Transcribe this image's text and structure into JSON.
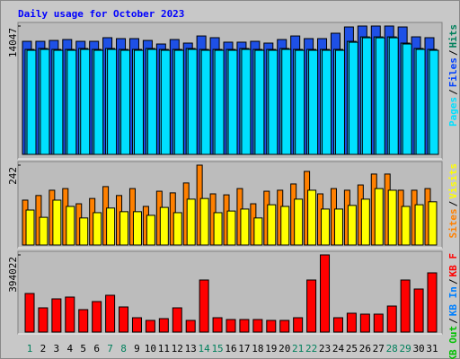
{
  "chart_data": [
    {
      "type": "bar",
      "title": "Daily usage for October 2023",
      "legend_separator": "/",
      "ylim": [
        0,
        14047
      ],
      "yticks": [
        14047
      ],
      "series": [
        {
          "name": "Hits",
          "color": "#1e50e6",
          "label_color": "#00805c",
          "values": [
            12375,
            12375,
            12470,
            12570,
            12375,
            12375,
            12770,
            12670,
            12670,
            12470,
            12080,
            12570,
            12180,
            12960,
            12770,
            12280,
            12280,
            12375,
            12180,
            12570,
            12960,
            12670,
            12670,
            13260,
            13945,
            14047,
            14047,
            14047,
            13945,
            12865,
            12770
          ]
        },
        {
          "name": "Files",
          "color": "#20b8f0",
          "label_color": "#0040ff",
          "values": [
            11490,
            11590,
            11490,
            11490,
            11590,
            11490,
            11590,
            11490,
            11490,
            11590,
            11490,
            11490,
            11590,
            11490,
            11490,
            11490,
            11590,
            11490,
            11490,
            11590,
            11490,
            11490,
            11490,
            11490,
            12370,
            12860,
            12860,
            12860,
            12180,
            11590,
            11490
          ]
        },
        {
          "name": "Pages",
          "color": "#00e0ff",
          "label_color": "#00e0ff",
          "values": [
            11390,
            11490,
            11390,
            11390,
            11490,
            11390,
            11490,
            11390,
            11390,
            11490,
            11390,
            11390,
            11490,
            11390,
            11390,
            11390,
            11490,
            11390,
            11390,
            11490,
            11390,
            11390,
            11390,
            11390,
            12270,
            12760,
            12760,
            12760,
            12080,
            11490,
            11390
          ]
        }
      ]
    },
    {
      "type": "bar",
      "legend_separator": "/",
      "ylim": [
        0,
        242
      ],
      "yticks": [
        242
      ],
      "series": [
        {
          "name": "Visits",
          "color": "#ffff00",
          "label_color": "#ffff00",
          "values": [
            106,
            84,
            136,
            117,
            82,
            98,
            112,
            101,
            101,
            90,
            114,
            98,
            139,
            141,
            98,
            103,
            109,
            82,
            122,
            117,
            139,
            166,
            109,
            109,
            120,
            139,
            171,
            166,
            117,
            122,
            131
          ]
        },
        {
          "name": "Sites",
          "color": "#ff8000",
          "label_color": "#ff8000",
          "values": [
            136,
            150,
            166,
            171,
            125,
            141,
            177,
            150,
            171,
            117,
            163,
            158,
            188,
            242,
            155,
            152,
            171,
            125,
            163,
            166,
            185,
            223,
            155,
            171,
            166,
            182,
            215,
            215,
            166,
            166,
            171
          ]
        }
      ]
    },
    {
      "type": "bar",
      "legend_separator": "/",
      "ylim": [
        0,
        394022
      ],
      "yticks": [
        394022
      ],
      "categories": [
        "1",
        "2",
        "3",
        "4",
        "5",
        "6",
        "7",
        "8",
        "9",
        "10",
        "11",
        "12",
        "13",
        "14",
        "15",
        "16",
        "17",
        "18",
        "19",
        "20",
        "21",
        "22",
        "23",
        "24",
        "25",
        "26",
        "27",
        "28",
        "29",
        "30",
        "31"
      ],
      "weekend": [
        true,
        false,
        false,
        false,
        false,
        false,
        true,
        true,
        false,
        false,
        false,
        false,
        false,
        true,
        true,
        false,
        false,
        false,
        false,
        false,
        true,
        true,
        false,
        false,
        false,
        false,
        false,
        true,
        true,
        false,
        false
      ],
      "weekday_color": "#000000",
      "weekend_color": "#00805c",
      "series": [
        {
          "name": "KB F",
          "color": "#ff0000",
          "label_color": "#ff0000",
          "values": [
            197000,
            123700,
            169500,
            178700,
            114600,
            155800,
            187900,
            128300,
            73300,
            59600,
            68700,
            123700,
            59600,
            265800,
            73300,
            64100,
            64100,
            64100,
            59600,
            59600,
            73300,
            265800,
            394022,
            73300,
            96200,
            91600,
            91600,
            132900,
            265800,
            219900,
            302400
          ]
        },
        {
          "name": "KB In",
          "label_color": "#0080ff"
        },
        {
          "name": "KB Out",
          "label_color": "#00c000"
        }
      ]
    }
  ]
}
